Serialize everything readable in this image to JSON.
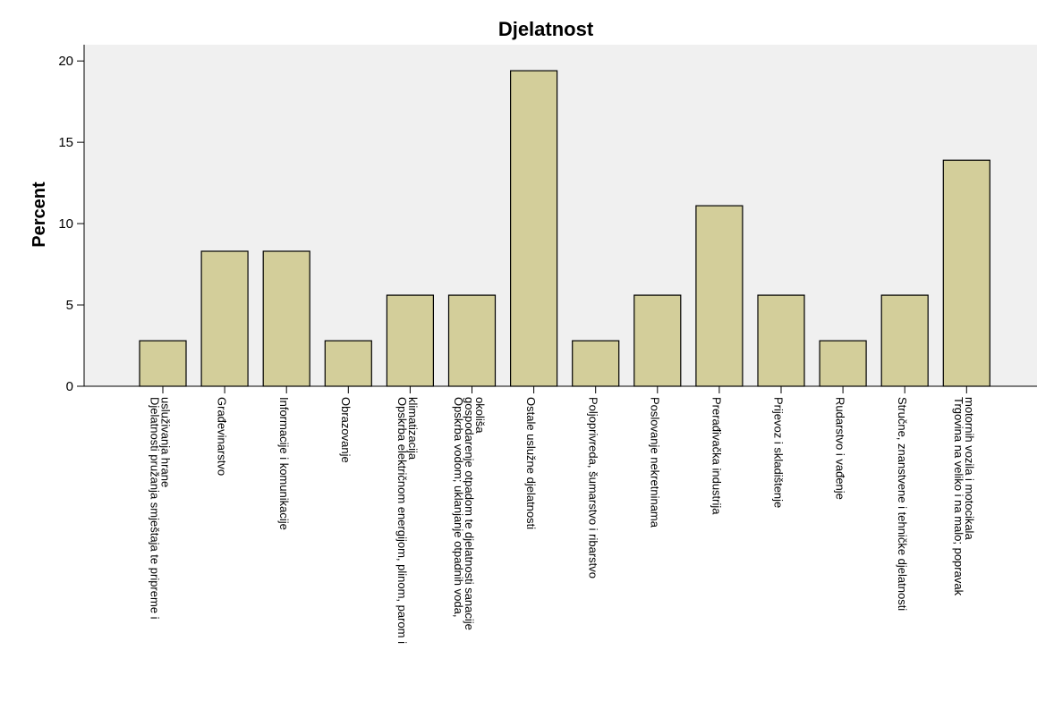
{
  "colors": {
    "bar_fill": "#d3ce9a",
    "bar_stroke": "#000000",
    "plot_bg": "#f0f0f0"
  },
  "chart_data": {
    "type": "bar",
    "title": "Djelatnost",
    "ylabel": "Percent",
    "xlabel": "",
    "ylim": [
      0,
      21
    ],
    "yticks": [
      0,
      5,
      10,
      15,
      20
    ],
    "grid": false,
    "categories": [
      [
        "Djelatnosti pružanja smještaja te pripreme i",
        "usluživanja hrane"
      ],
      [
        "Građevinarstvo"
      ],
      [
        "Informacije i komunikacije"
      ],
      [
        "Obrazovanje"
      ],
      [
        "Opskrba električnom energijom, plinom, parom i",
        "klimatizacija"
      ],
      [
        "Opskrba vodom; uklanjanje otpadnih voda,",
        "gospodarenje otpadom te djelatnosti sanacije",
        "okoliša"
      ],
      [
        "Ostale uslužne djelatnosti"
      ],
      [
        "Poljoprivreda, šumarstvo i ribarstvo"
      ],
      [
        "Poslovanje nekretninama"
      ],
      [
        "Prerađivačka industrija"
      ],
      [
        "Prijevoz i skladištenje"
      ],
      [
        "Rudarstvo i vađenje"
      ],
      [
        "Stručne, znanstvene i tehničke djelatnosti"
      ],
      [
        "Trgovina na veliko i na malo; popravak",
        "motornih vozila i motocikala"
      ]
    ],
    "values": [
      2.8,
      8.3,
      8.3,
      2.8,
      5.6,
      5.6,
      19.4,
      2.8,
      5.6,
      11.1,
      5.6,
      2.8,
      5.6,
      13.9
    ]
  }
}
